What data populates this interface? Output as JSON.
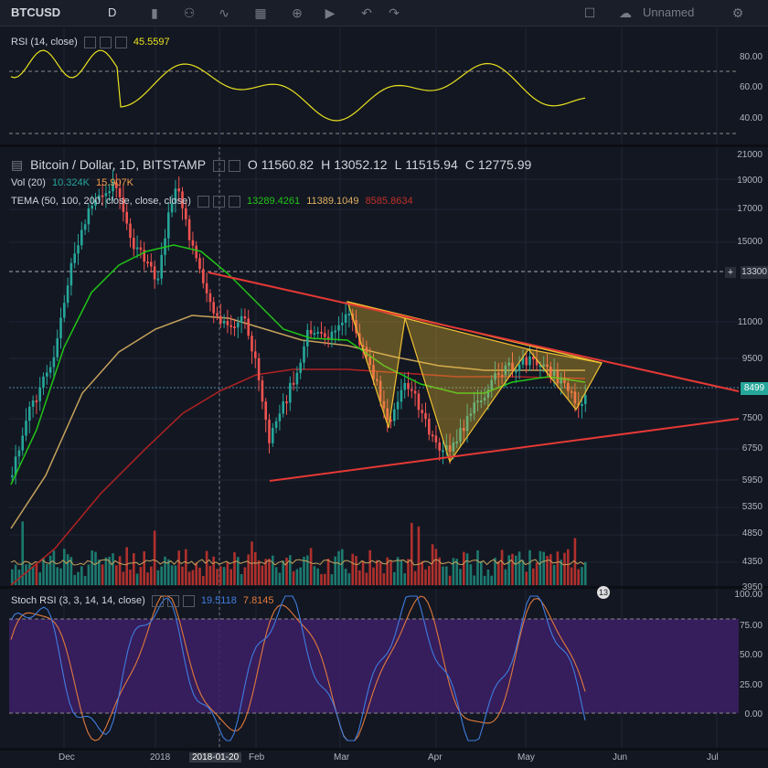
{
  "toolbar": {
    "symbol": "BTCUSD",
    "interval": "D",
    "layout_name": "Unnamed",
    "icons": [
      "candles-icon",
      "indicators-icon",
      "line-tool-icon",
      "pattern-icon",
      "alert-icon",
      "replay-icon",
      "undo-icon",
      "redo-icon",
      "fullscreen-icon",
      "cloud-icon",
      "gear-icon"
    ]
  },
  "rsi_pane": {
    "title": "RSI (14, close)",
    "value": "45.5597",
    "levels": [
      "80.00",
      "60.00",
      "40.00"
    ],
    "color": "#e8e11f"
  },
  "main_pane": {
    "title": "Bitcoin / Dollar, 1D, BITSTAMP",
    "ohlc": {
      "o_label": "O",
      "o": "11560.82",
      "h_label": "H",
      "h": "13052.12",
      "l_label": "L",
      "l": "11515.94",
      "c_label": "C",
      "c": "12775.99"
    },
    "vol": {
      "title": "Vol (20)",
      "v1": "10.324K",
      "v2": "15.907K"
    },
    "tema": {
      "title": "TEMA (50, 100, 200, close, close, close)",
      "v1": "13289.4261",
      "v2": "11389.1049",
      "v3": "8585.8634"
    },
    "price_labels": [
      "21000",
      "19000",
      "17000",
      "15000",
      "13300",
      "11000",
      "9500",
      "8499",
      "7500",
      "6750",
      "5950",
      "5350",
      "4850",
      "4350",
      "3950"
    ],
    "current_price_tag": "8499",
    "line_price_tag": "13300",
    "event_badge": "13"
  },
  "stoch_pane": {
    "title": "Stoch RSI (3, 3, 14, 14, close)",
    "k": "19.5118",
    "d": "7.8145",
    "levels": [
      "100.00",
      "75.00",
      "50.00",
      "25.00",
      "0.00"
    ]
  },
  "time_axis": {
    "labels": [
      "Dec",
      "2018",
      "2018-01-20",
      "Feb",
      "Mar",
      "Apr",
      "May",
      "Jun",
      "Jul"
    ],
    "crosshair_label": "2018-01-20"
  },
  "colors": {
    "background": "#131722",
    "up": "#26a69a",
    "down": "#ef5350",
    "tema_fast": "#21c417",
    "tema_mid": "#c7a35b",
    "tema_slow": "#b22222",
    "trendline": "#e53935",
    "pattern": "#f0c030",
    "stoch_band": "#4a2a7a"
  }
}
